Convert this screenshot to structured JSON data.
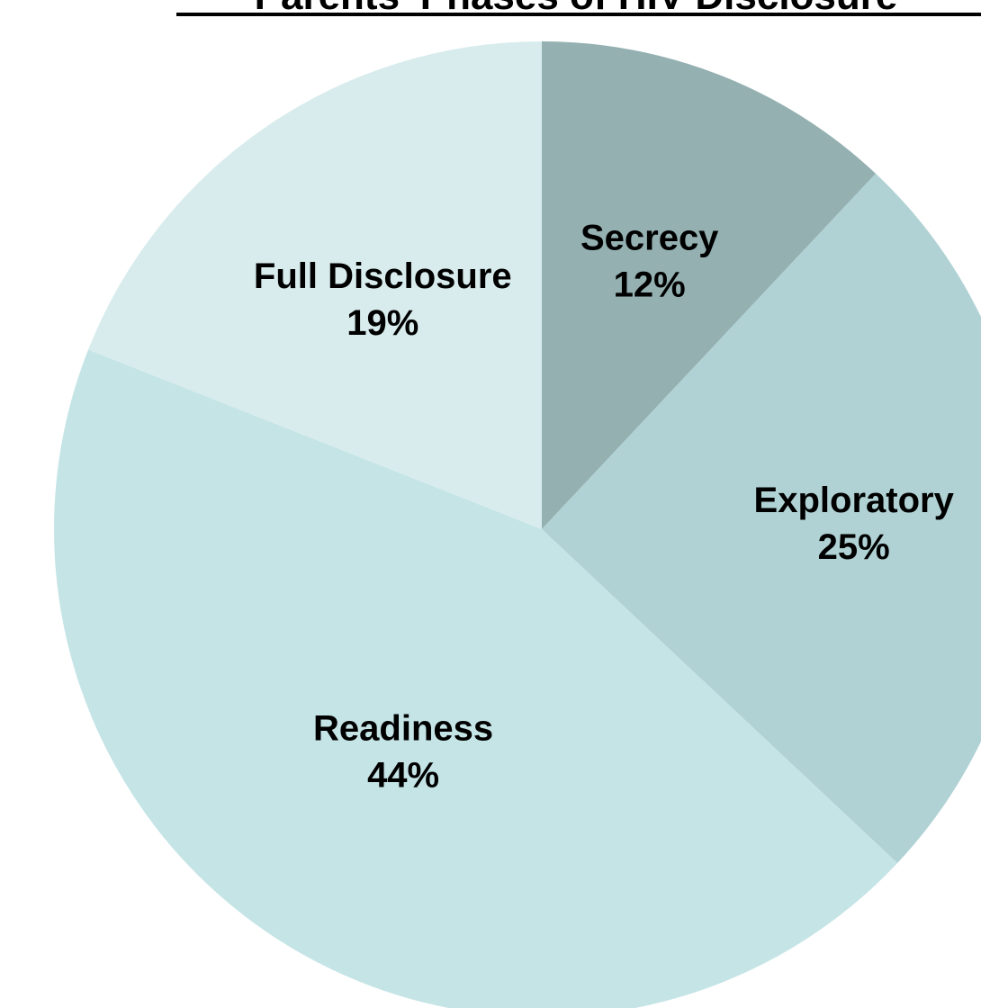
{
  "chart_data": {
    "type": "pie",
    "title": "Parents' Phases of HIV Disclosure",
    "start_angle_deg": 0,
    "direction": "clockwise",
    "slices": [
      {
        "label": "Secrecy",
        "value": 12,
        "display": "12%",
        "color": "#94b0b1"
      },
      {
        "label": "Exploratory",
        "value": 25,
        "display": "25%",
        "color": "#b0d2d4"
      },
      {
        "label": "Readiness",
        "value": 44,
        "display": "44%",
        "color": "#c5e4e6"
      },
      {
        "label": "Full Disclosure",
        "value": 19,
        "display": "19%",
        "color": "#d8eced"
      }
    ]
  }
}
